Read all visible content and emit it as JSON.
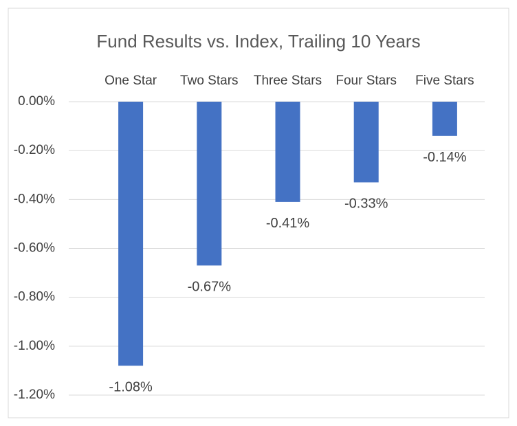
{
  "chart_data": {
    "type": "bar",
    "title": "Fund Results vs. Index, Trailing 10 Years",
    "categories": [
      "One Star",
      "Two Stars",
      "Three Stars",
      "Four Stars",
      "Five Stars"
    ],
    "values": [
      -1.08,
      -0.67,
      -0.41,
      -0.33,
      -0.14
    ],
    "value_labels": [
      "-1.08%",
      "-0.67%",
      "-0.41%",
      "-0.33%",
      "-0.14%"
    ],
    "color": "#4472c4",
    "ylim": [
      -1.2,
      0
    ],
    "yticks": [
      {
        "value": 0,
        "label": "0.00%"
      },
      {
        "value": -0.2,
        "label": "-0.20%"
      },
      {
        "value": -0.4,
        "label": "-0.40%"
      },
      {
        "value": -0.6,
        "label": "-0.60%"
      },
      {
        "value": -0.8,
        "label": "-0.80%"
      },
      {
        "value": -1.0,
        "label": "-1.00%"
      },
      {
        "value": -1.2,
        "label": "-1.20%"
      }
    ],
    "grid": true
  }
}
